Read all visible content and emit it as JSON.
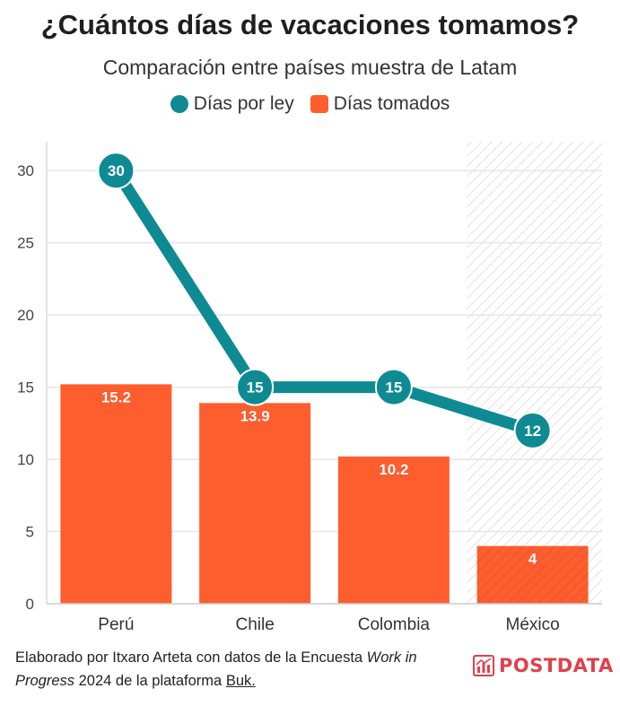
{
  "title": "¿Cuántos días de vacaciones tomamos?",
  "subtitle": "Comparación entre países muestra de Latam",
  "legend": {
    "law": {
      "label": "Días por ley",
      "color": "#0e8a93"
    },
    "taken": {
      "label": "Días tomados",
      "color": "#fe5e2e"
    }
  },
  "footer": {
    "prefix": "Elaborado por Itxaro Arteta con datos de la Encuesta ",
    "survey_italic": "Work in Progress",
    "middle": " 2024 de la plataforma ",
    "platform": "Buk."
  },
  "logo": {
    "text": "POSTDATA",
    "color": "#e0404a"
  },
  "chart_data": {
    "type": "bar",
    "categories": [
      "Perú",
      "Chile",
      "Colombia",
      "México"
    ],
    "series": [
      {
        "name": "Días tomados",
        "kind": "bar",
        "color": "#fe5e2e",
        "values": [
          15.2,
          13.9,
          10.2,
          4
        ],
        "labels": [
          "15.2",
          "13.9",
          "10.2",
          "4"
        ]
      },
      {
        "name": "Días por ley",
        "kind": "line",
        "color": "#0e8a93",
        "values": [
          30,
          15,
          15,
          12
        ],
        "labels": [
          "30",
          "15",
          "15",
          "12"
        ]
      }
    ],
    "ylim": [
      0,
      32
    ],
    "yticks": [
      0,
      5,
      10,
      15,
      20,
      25,
      30
    ],
    "highlight_category": "México",
    "grid": true
  }
}
